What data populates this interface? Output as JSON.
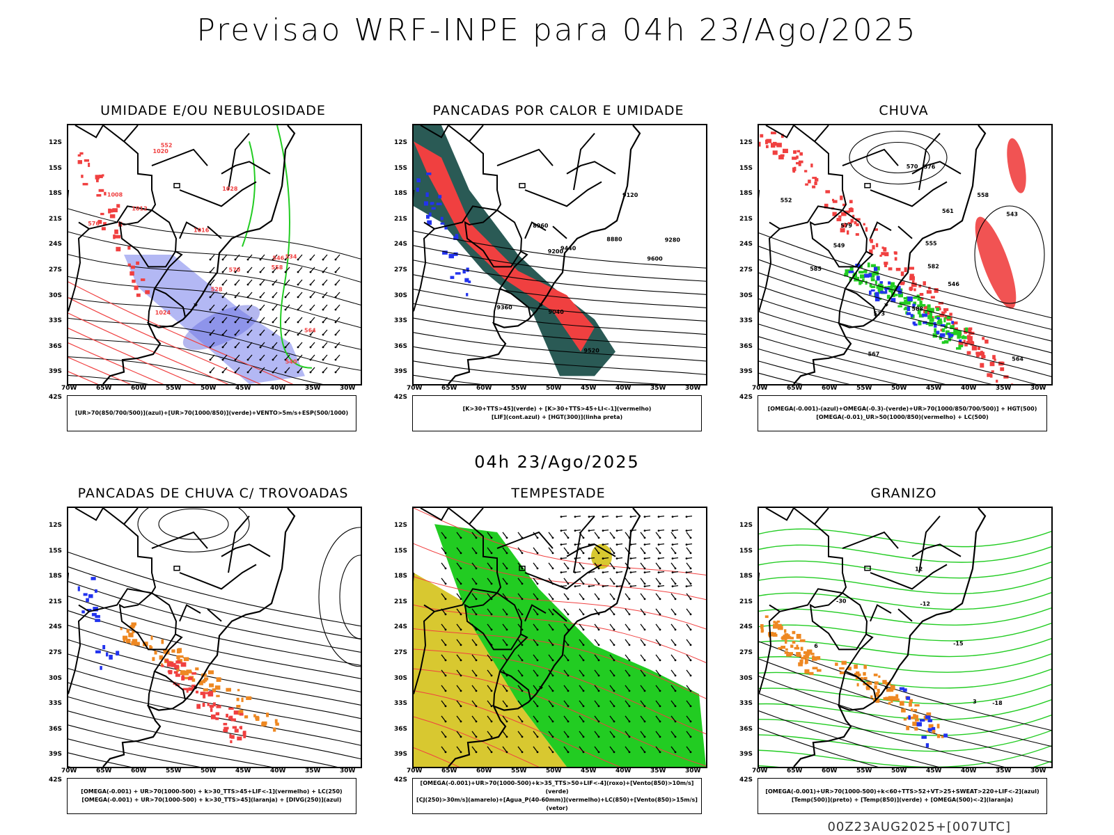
{
  "title": "Previsao WRF-INPE  para 04h 23/Ago/2025",
  "subtitle": "04h 23/Ago/2025",
  "footer": "00Z23AUG2025+[007UTC]",
  "lat_labels": [
    "12S",
    "15S",
    "18S",
    "21S",
    "24S",
    "27S",
    "30S",
    "33S",
    "36S",
    "39S",
    "42S"
  ],
  "lon_labels": [
    "70W",
    "65W",
    "60W",
    "55W",
    "50W",
    "45W",
    "40W",
    "35W",
    "30W"
  ],
  "panels": [
    {
      "title": "UMIDADE E/OU NEBULOSIDADE",
      "legend": [
        "[UR>70(850/700/500)](azul)+[UR>70(1000/850)](verde)+VENTO>5m/s+ESP(500/1000)"
      ],
      "contour_labels": [
        "1012",
        "1008",
        "1016",
        "1020",
        "1024",
        "1028",
        "576",
        "570",
        "564",
        "558",
        "552",
        "546",
        "540",
        "534",
        "528"
      ]
    },
    {
      "title": "PANCADAS POR CALOR E UMIDADE",
      "legend": [
        "[K>30+TTS>45](verde) + [K>30+TTS>45+LI<-1](vermelho)",
        "[LIF](cont.azul) + [HGT(300)](linha preta)"
      ],
      "contour_labels": [
        "9600",
        "9520",
        "9440",
        "9360",
        "9280",
        "9200",
        "9120",
        "9040",
        "8960",
        "8880"
      ]
    },
    {
      "title": "CHUVA",
      "legend": [
        "[OMEGA(-0.001)-(azul)+OMEGA(-0.3)-(verde)+UR>70(1000/850/700/500)] + HGT(500)",
        "[OMEGA(-0.01)_UR>50(1000/850)(vermelho) + LC(500)"
      ],
      "contour_labels": [
        "588",
        "585",
        "582",
        "579",
        "576",
        "573",
        "570",
        "567",
        "564",
        "561",
        "558",
        "555",
        "552",
        "549",
        "546",
        "543"
      ]
    },
    {
      "title": "PANCADAS DE CHUVA C/ TROVOADAS",
      "legend": [
        "[OMEGA(-0.001) + UR>70(1000-500) + k>30_TTS>45+LIF<-1](vermelho) + LC(250)",
        "[OMEGA(-0.001) + UR>70(1000-500) + k>30_TTS>45](laranja) + [DIVG(250)](azul)"
      ],
      "contour_labels": []
    },
    {
      "title": "TEMPESTADE",
      "legend": [
        "[OMEGA(-0.001)+UR>70(1000-500)+k>35_TTS>50+LIF<-4](roxo)+[Vento(850)>10m/s](verde)",
        "[CJ(250)>30m/s](amarelo)+[Agua_P(40-60mm)](vermelho)+LC(850)+[Vento(850)>15m/s](vetor)"
      ],
      "contour_labels": []
    },
    {
      "title": "GRANIZO",
      "legend": [
        "[OMEGA(-0.001)+UR>70(1000-500)+k<60+TTS>52+VT>25+SWEAT>220+LIF<-2](azul)",
        "[Temp(500)](preto) + [Temp(850)](verde) + [OMEGA(500)<-2](laranja)"
      ],
      "contour_labels": [
        "-12",
        "-15",
        "-18",
        "-30",
        "12",
        "6",
        "3"
      ]
    }
  ],
  "colors": {
    "red": "#f04040",
    "green": "#22cc22",
    "blue": "#2233ee",
    "teal": "#2a5a55",
    "yellow": "#d8c830",
    "orange": "#ee8822",
    "lightblue": "#9aa0f0"
  }
}
